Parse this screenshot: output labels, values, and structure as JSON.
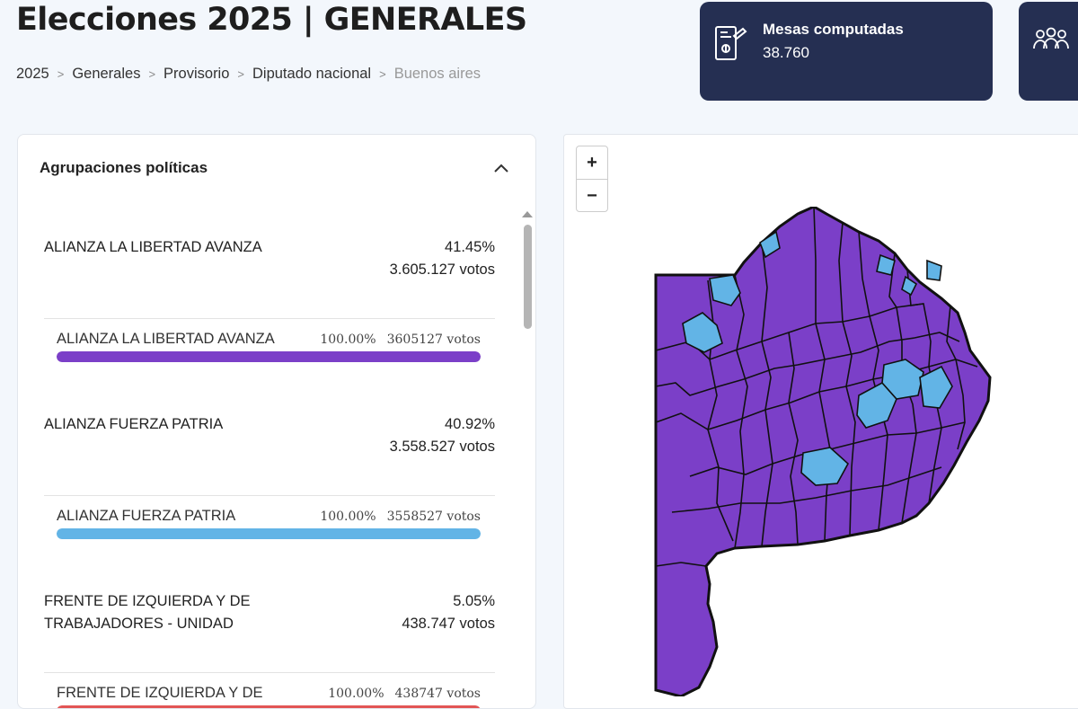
{
  "header": {
    "title": "Elecciones 2025 | GENERALES",
    "breadcrumb": [
      "2025",
      "Generales",
      "Provisorio",
      "Diputado nacional",
      "Buenos aires"
    ]
  },
  "stats": {
    "mesas_label": "Mesas computadas",
    "mesas_value": "38.760",
    "mesas_icon": "ballot-box-icon",
    "second_icon": "people-icon"
  },
  "panel": {
    "title": "Agrupaciones políticas",
    "parties": [
      {
        "name": "ALIANZA LA LIBERTAD AVANZA",
        "pct": "41.45%",
        "votes": "3.605.127 votos",
        "sub_name": "ALIANZA LA LIBERTAD AVANZA",
        "sub_pct": "100.00%",
        "sub_votes": "3605127 votos",
        "bar_fraction": 1.0,
        "color": "#7b3fc8"
      },
      {
        "name": "ALIANZA FUERZA PATRIA",
        "pct": "40.92%",
        "votes": "3.558.527 votos",
        "sub_name": "ALIANZA FUERZA PATRIA",
        "sub_pct": "100.00%",
        "sub_votes": "3558527 votos",
        "bar_fraction": 1.0,
        "color": "#62b4e6"
      },
      {
        "name": "FRENTE DE IZQUIERDA Y DE TRABAJADORES - UNIDAD",
        "pct": "5.05%",
        "votes": "438.747 votos",
        "sub_name": "FRENTE DE IZQUIERDA Y DE",
        "sub_pct": "100.00%",
        "sub_votes": "438747 votos",
        "bar_fraction": 1.0,
        "color": "#e25555"
      }
    ]
  },
  "map": {
    "zoom_in": "+",
    "zoom_out": "−",
    "fill_primary": "#7b3fc8",
    "fill_secondary": "#62b4e6",
    "stroke": "#111111"
  }
}
